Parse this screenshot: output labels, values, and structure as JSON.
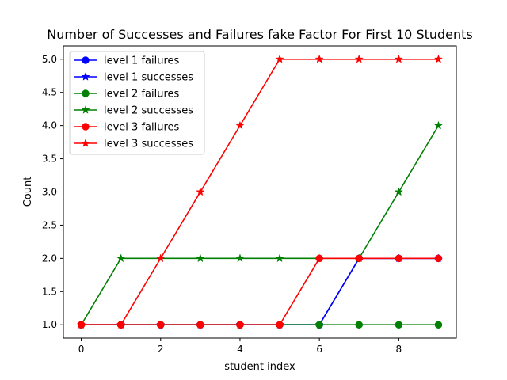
{
  "chart_data": {
    "type": "line",
    "title": "Number of Successes and Failures fake Factor For First 10 Students",
    "xlabel": "student index",
    "ylabel": "Count",
    "x": [
      0,
      1,
      2,
      3,
      4,
      5,
      6,
      7,
      8,
      9
    ],
    "xlim": [
      -0.45,
      9.45
    ],
    "ylim": [
      0.8,
      5.2
    ],
    "xticks": [
      0,
      2,
      4,
      6,
      8
    ],
    "xtick_labels": [
      "0",
      "2",
      "4",
      "6",
      "8"
    ],
    "yticks": [
      1.0,
      1.5,
      2.0,
      2.5,
      3.0,
      3.5,
      4.0,
      4.5,
      5.0
    ],
    "ytick_labels": [
      "1.0",
      "1.5",
      "2.0",
      "2.5",
      "3.0",
      "3.5",
      "4.0",
      "4.5",
      "5.0"
    ],
    "grid": false,
    "legend_position": "top-left",
    "series": [
      {
        "name": "level 1 failures",
        "color": "#0000ff",
        "marker": "circle",
        "values": [
          1,
          1,
          1,
          1,
          1,
          1,
          1,
          2,
          2,
          2
        ]
      },
      {
        "name": "level 1 successes",
        "color": "#0000ff",
        "marker": "star",
        "values": [
          1,
          1,
          1,
          1,
          1,
          1,
          1,
          2,
          2,
          2
        ]
      },
      {
        "name": "level 2 failures",
        "color": "#008000",
        "marker": "circle",
        "values": [
          1,
          1,
          1,
          1,
          1,
          1,
          1,
          1,
          1,
          1
        ]
      },
      {
        "name": "level 2 successes",
        "color": "#008000",
        "marker": "star",
        "values": [
          1,
          2,
          2,
          2,
          2,
          2,
          2,
          2,
          3,
          4
        ]
      },
      {
        "name": "level 3 failures",
        "color": "#ff0000",
        "marker": "circle",
        "values": [
          1,
          1,
          1,
          1,
          1,
          1,
          2,
          2,
          2,
          2
        ]
      },
      {
        "name": "level 3 successes",
        "color": "#ff0000",
        "marker": "star",
        "values": [
          1,
          1,
          2,
          3,
          4,
          5,
          5,
          5,
          5,
          5
        ]
      }
    ]
  }
}
